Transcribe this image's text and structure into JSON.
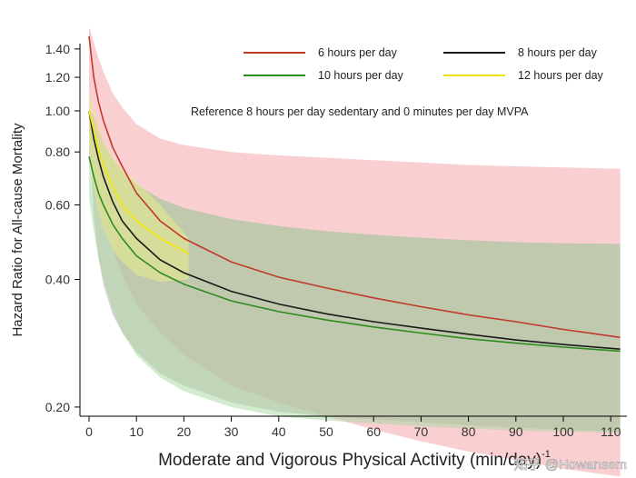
{
  "chart_data": {
    "type": "line",
    "title": "",
    "xlabel": "Moderate and Vigorous Physical Activity (min/day)",
    "xlabel_sup": "-1",
    "ylabel": "Hazard Ratio for All-cause Mortality",
    "xlim": [
      -1,
      113
    ],
    "ylim": [
      0.135,
      1.62
    ],
    "y_scale": "log",
    "x_ticks": [
      0,
      10,
      20,
      30,
      40,
      50,
      60,
      70,
      80,
      90,
      100,
      110
    ],
    "y_ticks": [
      0.2,
      0.4,
      0.6,
      0.8,
      1.0,
      1.2,
      1.4
    ],
    "y_tick_labels": [
      "0.20",
      "0.40",
      "0.60",
      "0.80",
      "1.00",
      "1.20",
      "1.40"
    ],
    "grid": false,
    "legend_position": "top-right",
    "annotation": "Reference 8 hours per day sedentary and 0 minutes per day MVPA",
    "series": [
      {
        "name": "6 hours per day",
        "color": "#c0392b",
        "band_color": "#f4a0a6",
        "x": [
          0,
          1,
          2,
          3,
          5,
          7,
          10,
          15,
          20,
          30,
          40,
          50,
          60,
          70,
          80,
          90,
          100,
          112
        ],
        "values": [
          1.5,
          1.2,
          1.05,
          0.95,
          0.82,
          0.74,
          0.64,
          0.55,
          0.5,
          0.44,
          0.405,
          0.382,
          0.362,
          0.345,
          0.33,
          0.318,
          0.305,
          0.292
        ],
        "lower": [
          0.8,
          0.68,
          0.6,
          0.55,
          0.47,
          0.41,
          0.35,
          0.3,
          0.265,
          0.225,
          0.205,
          0.19,
          0.177,
          0.166,
          0.157,
          0.15,
          0.143,
          0.137
        ],
        "upper": [
          1.58,
          1.45,
          1.33,
          1.24,
          1.1,
          1.02,
          0.93,
          0.86,
          0.83,
          0.8,
          0.785,
          0.775,
          0.765,
          0.755,
          0.745,
          0.74,
          0.735,
          0.73
        ]
      },
      {
        "name": "8 hours per day",
        "color": "#1a1a1a",
        "band_color": "#b8a8a8",
        "x": [
          0,
          1,
          2,
          3,
          5,
          7,
          10,
          15,
          20,
          30,
          40,
          50,
          60,
          70,
          80,
          90,
          100,
          112
        ],
        "values": [
          1.0,
          0.86,
          0.77,
          0.7,
          0.61,
          0.55,
          0.5,
          0.445,
          0.415,
          0.375,
          0.35,
          0.332,
          0.318,
          0.307,
          0.297,
          0.288,
          0.281,
          0.274
        ],
        "lower": [
          1.0,
          0.56,
          0.45,
          0.39,
          0.33,
          0.3,
          0.27,
          0.24,
          0.225,
          0.205,
          0.195,
          0.19,
          0.187,
          0.184,
          0.181,
          0.179,
          0.177,
          0.175
        ],
        "upper": [
          1.0,
          0.98,
          0.9,
          0.84,
          0.77,
          0.72,
          0.67,
          0.62,
          0.59,
          0.555,
          0.535,
          0.52,
          0.51,
          0.502,
          0.495,
          0.49,
          0.487,
          0.485
        ]
      },
      {
        "name": "10 hours per day",
        "color": "#2e8b1e",
        "band_color": "#a8d8a0",
        "x": [
          0,
          1,
          2,
          3,
          5,
          7,
          10,
          15,
          20,
          30,
          40,
          50,
          60,
          70,
          80,
          90,
          100,
          112
        ],
        "values": [
          0.78,
          0.7,
          0.64,
          0.6,
          0.54,
          0.5,
          0.455,
          0.415,
          0.39,
          0.356,
          0.336,
          0.321,
          0.309,
          0.299,
          0.29,
          0.283,
          0.277,
          0.271
        ],
        "lower": [
          0.62,
          0.52,
          0.45,
          0.4,
          0.34,
          0.3,
          0.265,
          0.235,
          0.218,
          0.2,
          0.19,
          0.186,
          0.183,
          0.18,
          0.178,
          0.176,
          0.175,
          0.174
        ],
        "upper": [
          0.96,
          0.9,
          0.86,
          0.82,
          0.76,
          0.72,
          0.67,
          0.62,
          0.59,
          0.555,
          0.535,
          0.52,
          0.51,
          0.502,
          0.495,
          0.49,
          0.487,
          0.485
        ]
      },
      {
        "name": "12 hours per day",
        "color": "#f2e600",
        "band_color": "#e8eb8a",
        "x": [
          0,
          1,
          2,
          3,
          5,
          7,
          10,
          15,
          21
        ],
        "values": [
          1.0,
          0.9,
          0.81,
          0.75,
          0.66,
          0.6,
          0.55,
          0.5,
          0.46
        ],
        "lower": [
          0.85,
          0.66,
          0.58,
          0.53,
          0.47,
          0.44,
          0.41,
          0.395,
          0.4
        ],
        "upper": [
          1.12,
          1.0,
          0.92,
          0.85,
          0.78,
          0.73,
          0.68,
          0.6,
          0.5
        ]
      }
    ]
  },
  "watermark": "知乎 @Howansem"
}
